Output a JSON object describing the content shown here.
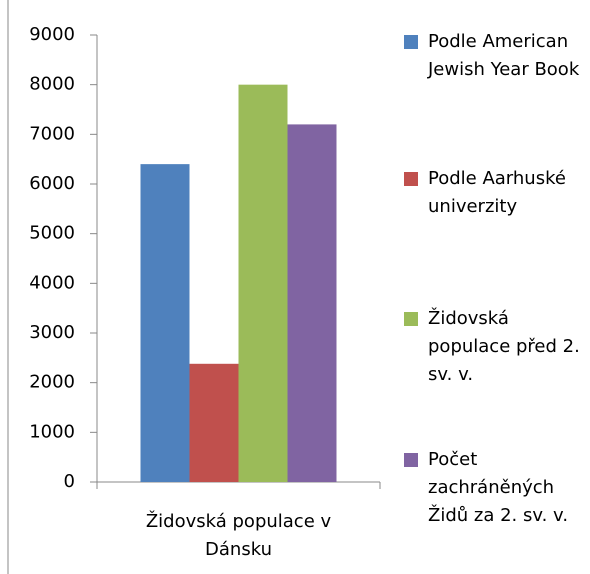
{
  "chart_data": {
    "type": "bar",
    "categories": [
      "Židovská populace v Dánsku"
    ],
    "series": [
      {
        "name": "Podle American Jewish Year Book",
        "color": "#4f81bd",
        "values": [
          6400
        ]
      },
      {
        "name": "Podle Aarhuské univerzity",
        "color": "#c0504d",
        "values": [
          2380
        ]
      },
      {
        "name": "Židovská populace před 2. sv. v.",
        "color": "#9bbb59",
        "values": [
          8000
        ]
      },
      {
        "name": "Počet zachráněných Židů za 2. sv. v.",
        "color": "#8064a2",
        "values": [
          7200
        ]
      }
    ],
    "ylim": [
      0,
      9000
    ],
    "yticks": [
      0,
      1000,
      2000,
      3000,
      4000,
      5000,
      6000,
      7000,
      8000,
      9000
    ],
    "grid": false,
    "legend": "right"
  }
}
